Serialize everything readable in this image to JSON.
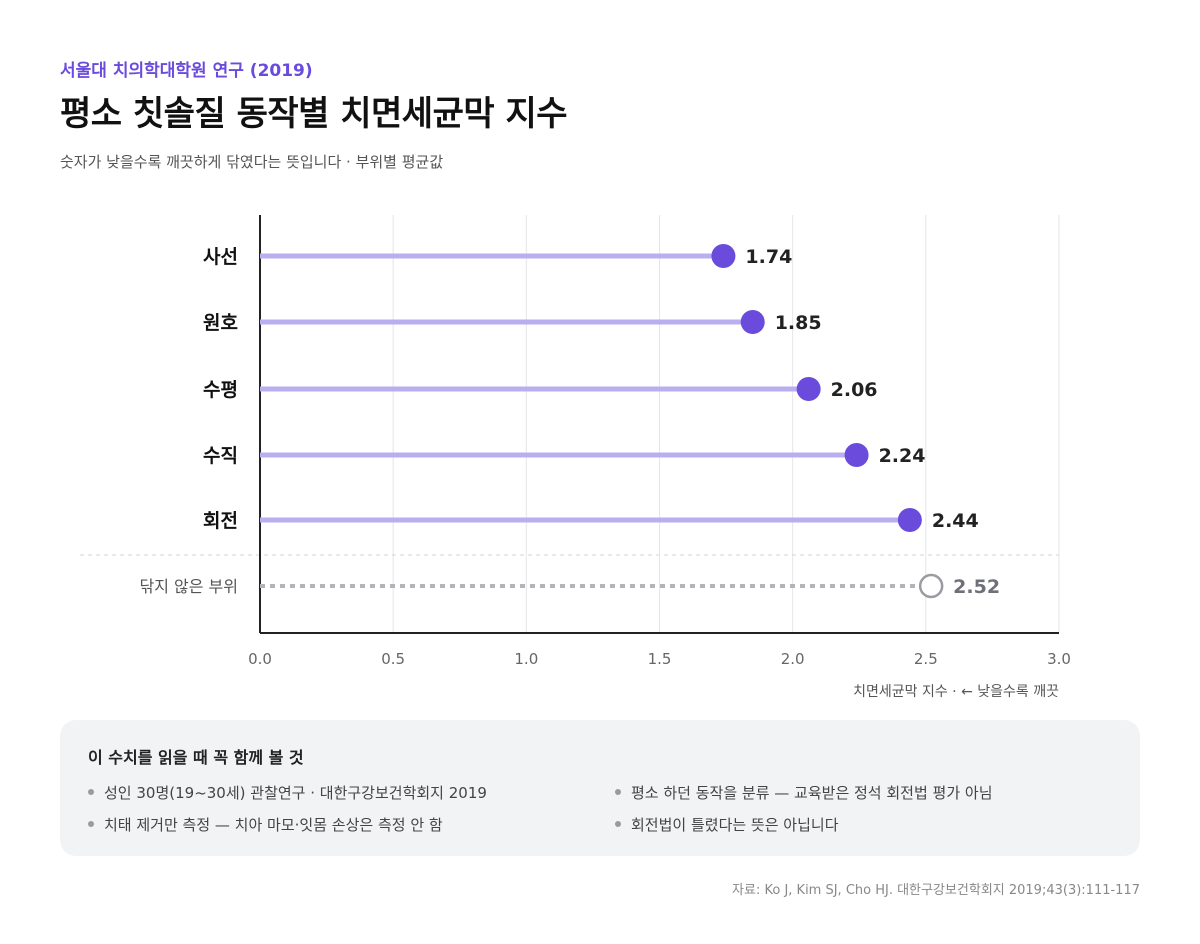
{
  "header": {
    "kicker": "서울대 치의학대학원 연구 (2019)",
    "title": "평소 칫솔질 동작별 치면세균막 지수",
    "subtitle": "숫자가 낮을수록 깨끗하게 닦였다는 뜻입니다 · 부위별 평균값"
  },
  "chart_data": {
    "type": "lollipop",
    "orientation": "horizontal",
    "categories": [
      "사선",
      "원호",
      "수평",
      "수직",
      "회전"
    ],
    "values": [
      1.74,
      1.85,
      2.06,
      2.24,
      2.44
    ],
    "reference": {
      "label": "닦지 않은 부위",
      "value": 2.52
    },
    "xlim": [
      0,
      3.0
    ],
    "xticks": [
      "0.0",
      "0.5",
      "1.0",
      "1.5",
      "2.0",
      "2.5",
      "3.0"
    ],
    "xlabel": "치면세균막 지수 · ← 낮을수록 깨끗",
    "ylabel": "",
    "grid": true,
    "colors": {
      "stem": "#b9aef0",
      "dot": "#6a4bdc",
      "reference": "#9a9ba3",
      "grid": "#e6e6e6",
      "axis": "#222222"
    }
  },
  "notes": {
    "title": "이 수치를 읽을 때 꼭 함께 볼 것",
    "items": [
      "성인 30명(19~30세) 관찰연구 · 대한구강보건학회지 2019",
      "평소 하던 동작을 분류 — 교육받은 정석 회전법 평가 아님",
      "치태 제거만 측정 — 치아 마모·잇몸 손상은 측정 안 함",
      "회전법이 틀렸다는 뜻은 아닙니다"
    ]
  },
  "source": "자료: Ko J, Kim SJ, Cho HJ. 대한구강보건학회지 2019;43(3):111-117"
}
